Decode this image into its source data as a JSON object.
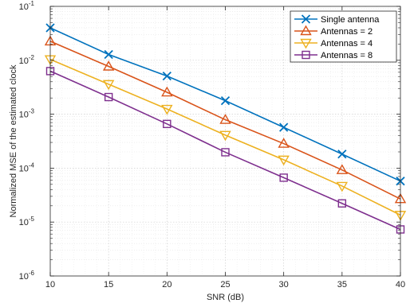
{
  "chart_data": {
    "type": "line",
    "title": "",
    "xlabel": "SNR (dB)",
    "ylabel": "Normalized MSE of the estimated clock",
    "x": [
      10,
      15,
      20,
      25,
      30,
      35,
      40
    ],
    "xlim": [
      10,
      40
    ],
    "ylim": [
      1e-06,
      0.1
    ],
    "yscale": "log",
    "x_ticks": [
      "10",
      "15",
      "20",
      "25",
      "30",
      "35",
      "40"
    ],
    "y_ticks": [
      {
        "base": "10",
        "exp": "-6"
      },
      {
        "base": "10",
        "exp": "-5"
      },
      {
        "base": "10",
        "exp": "-4"
      },
      {
        "base": "10",
        "exp": "-3"
      },
      {
        "base": "10",
        "exp": "-2"
      },
      {
        "base": "10",
        "exp": "-1"
      }
    ],
    "grid": true,
    "legend_position": "top-right",
    "series": [
      {
        "name": "Single antenna",
        "marker": "x",
        "color": "#0072BD",
        "values": [
          0.04,
          0.0128,
          0.0051,
          0.00178,
          0.00057,
          0.000182,
          5.75e-05
        ]
      },
      {
        "name": "Antennas = 2",
        "marker": "triangle-up",
        "color": "#D95319",
        "values": [
          0.0225,
          0.0077,
          0.00255,
          0.00079,
          0.000285,
          9.25e-05,
          2.68e-05
        ]
      },
      {
        "name": "Antennas = 4",
        "marker": "triangle-down",
        "color": "#EDB120",
        "values": [
          0.0104,
          0.0036,
          0.00125,
          0.00041,
          0.000143,
          4.65e-05,
          1.35e-05
        ]
      },
      {
        "name": "Antennas = 8",
        "marker": "square",
        "color": "#7E2F8E",
        "values": [
          0.0063,
          0.00208,
          0.00066,
          0.000197,
          6.65e-05,
          2.22e-05,
          7.3e-06
        ]
      }
    ]
  }
}
